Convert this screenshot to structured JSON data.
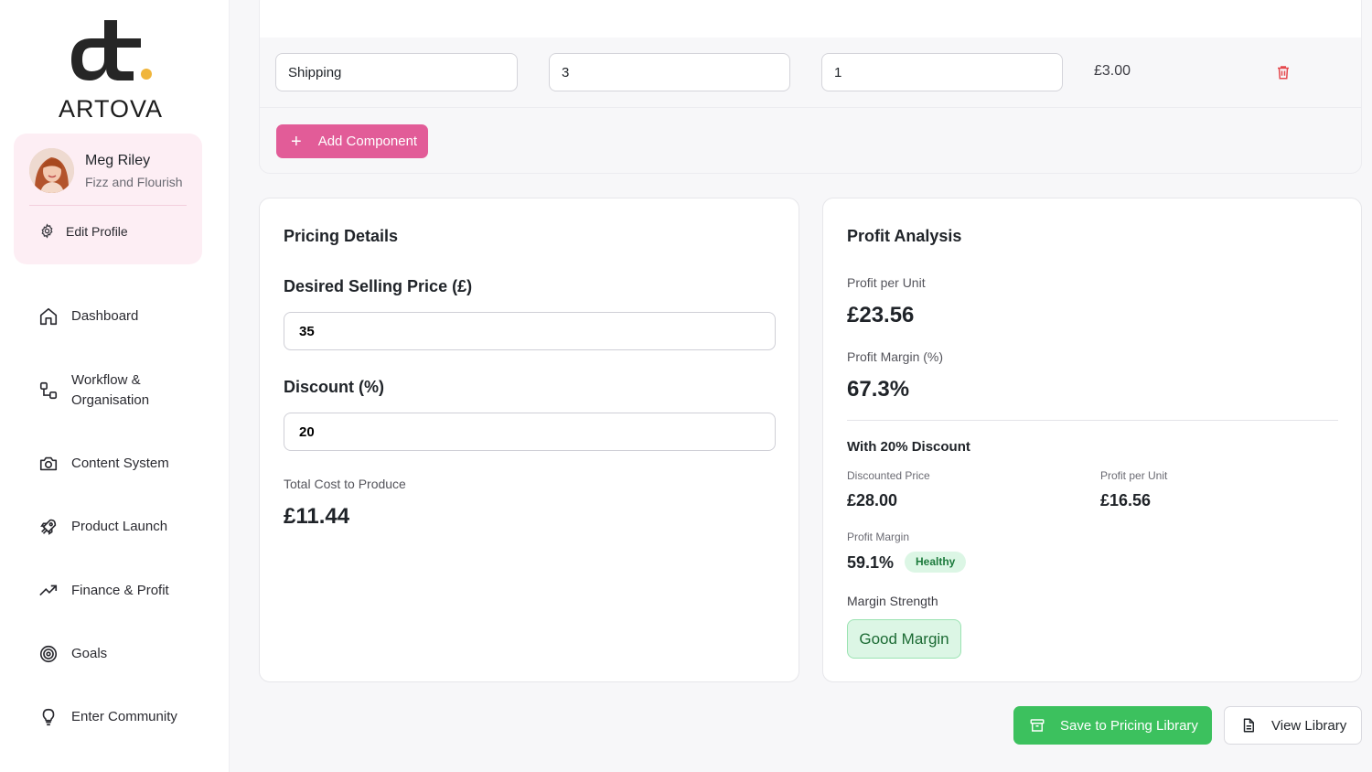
{
  "brand": {
    "name": "ARTOVA",
    "accent_dot": "#f0b53b"
  },
  "profile": {
    "name": "Meg Riley",
    "business": "Fizz and Flourish",
    "edit_label": "Edit Profile"
  },
  "nav": [
    {
      "label": "Dashboard",
      "icon": "home-icon"
    },
    {
      "label": "Workflow & Organisation",
      "icon": "workflow-icon"
    },
    {
      "label": "Content System",
      "icon": "camera-icon"
    },
    {
      "label": "Product Launch",
      "icon": "rocket-icon"
    },
    {
      "label": "Finance & Profit",
      "icon": "trending-up-icon"
    },
    {
      "label": "Goals",
      "icon": "target-icon"
    },
    {
      "label": "Enter Community",
      "icon": "lightbulb-icon"
    }
  ],
  "component_row": {
    "name": "Shipping",
    "cost": "3",
    "quantity": "1",
    "total": "£3.00",
    "delete_icon": "trash-icon"
  },
  "add_component_label": "Add Component",
  "pricing": {
    "title": "Pricing Details",
    "price_label": "Desired Selling Price (£)",
    "price_value": "35",
    "discount_label": "Discount (%)",
    "discount_value": "20",
    "total_cost_label": "Total Cost to Produce",
    "total_cost_value": "£11.44"
  },
  "profit": {
    "title": "Profit Analysis",
    "per_unit_label": "Profit per Unit",
    "per_unit_value": "£23.56",
    "margin_label": "Profit Margin (%)",
    "margin_value": "67.3%",
    "discount_heading": "With 20% Discount",
    "discounted_price_label": "Discounted Price",
    "discounted_price_value": "£28.00",
    "discount_profit_label": "Profit per Unit",
    "discount_profit_value": "£16.56",
    "discount_margin_label": "Profit Margin",
    "discount_margin_value": "59.1%",
    "health_badge": "Healthy",
    "strength_label": "Margin Strength",
    "strength_value": "Good Margin"
  },
  "actions": {
    "save_label": "Save to Pricing Library",
    "view_label": "View Library"
  },
  "colors": {
    "accent_pink": "#e25c98",
    "success_green": "#3cc15e",
    "danger_red": "#e5484d"
  }
}
